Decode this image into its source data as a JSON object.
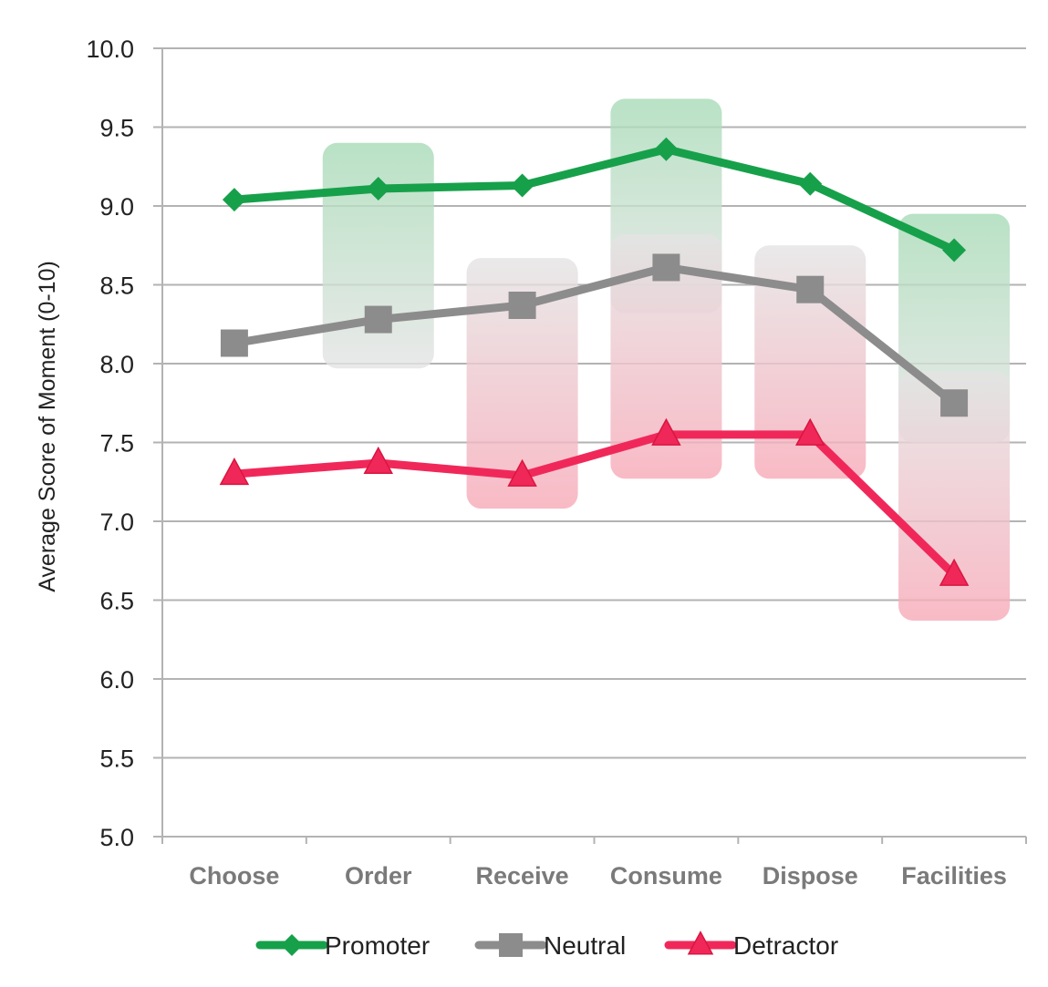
{
  "chart_data": {
    "type": "line",
    "title": "",
    "xlabel": "",
    "ylabel": "Average Score of Moment (0-10)",
    "ylim": [
      5.0,
      10.0
    ],
    "yticks": [
      "10.0",
      "9.5",
      "9.0",
      "8.5",
      "8.0",
      "7.5",
      "7.0",
      "6.5",
      "6.0",
      "5.5",
      "5.0"
    ],
    "categories": [
      "Choose",
      "Order",
      "Receive",
      "Consume",
      "Dispose",
      "Facilities"
    ],
    "grid": true,
    "legend_position": "bottom",
    "series": [
      {
        "name": "Promoter",
        "color": "#17a04a",
        "marker": "diamond",
        "values": [
          9.04,
          9.11,
          9.13,
          9.36,
          9.14,
          8.72
        ]
      },
      {
        "name": "Neutral",
        "color": "#8c8c8c",
        "marker": "square",
        "values": [
          8.13,
          8.28,
          8.37,
          8.61,
          8.47,
          7.75
        ]
      },
      {
        "name": "Detractor",
        "color": "#f0285a",
        "marker": "triangle",
        "values": [
          7.3,
          7.37,
          7.29,
          7.55,
          7.55,
          6.66
        ]
      }
    ],
    "bands": [
      {
        "category": "Order",
        "top": 9.4,
        "bottom": 7.97,
        "from": "green",
        "to": "gray"
      },
      {
        "category": "Receive",
        "top": 8.67,
        "bottom": 7.08,
        "from": "gray",
        "to": "red"
      },
      {
        "category": "Consume",
        "top": 9.68,
        "bottom": 8.32,
        "from": "green",
        "to": "gray"
      },
      {
        "category": "Consume",
        "top": 8.82,
        "bottom": 7.27,
        "from": "gray",
        "to": "red"
      },
      {
        "category": "Dispose",
        "top": 8.75,
        "bottom": 7.27,
        "from": "gray",
        "to": "red"
      },
      {
        "category": "Facilities",
        "top": 8.95,
        "bottom": 7.5,
        "from": "green",
        "to": "gray"
      },
      {
        "category": "Facilities",
        "top": 7.95,
        "bottom": 6.37,
        "from": "gray",
        "to": "red"
      }
    ],
    "band_colors": {
      "green": "#a8dbb7",
      "gray": "#e4e4e4",
      "red": "#f7aab8"
    }
  }
}
